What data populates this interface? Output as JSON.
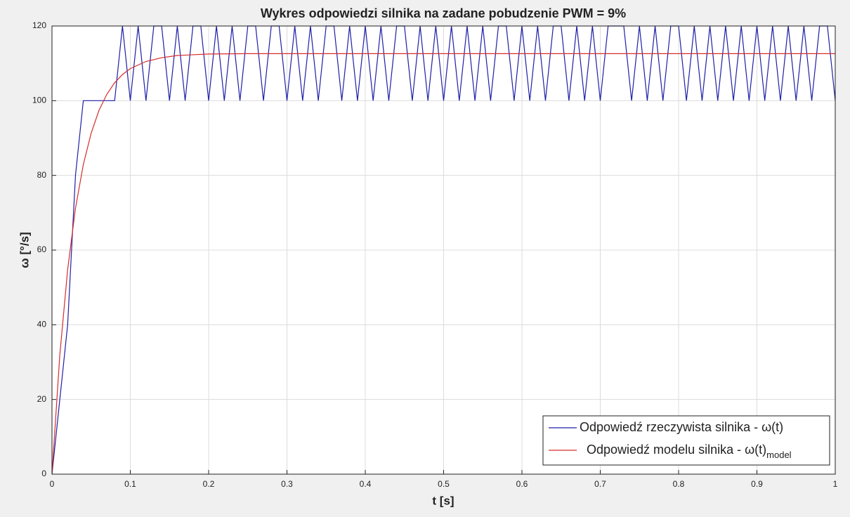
{
  "chart_data": {
    "type": "line",
    "title": "Wykres odpowiedzi silnika na zadane pobudzenie PWM = 9%",
    "xlabel": "t [s]",
    "ylabel": "ω [°/s]",
    "xlim": [
      0,
      1
    ],
    "xticks": [
      0,
      0.1,
      0.2,
      0.3,
      0.4,
      0.5,
      0.6,
      0.7,
      0.8,
      0.9,
      1
    ],
    "ylim": [
      0,
      120
    ],
    "yticks": [
      0,
      20,
      40,
      60,
      80,
      100,
      120
    ],
    "grid": true,
    "legend": "lower right",
    "series": [
      {
        "name": "Odpowiedź rzeczywista silnika - ω(t)",
        "color": "#1f1fa8",
        "x": [
          0,
          0.01,
          0.02,
          0.03,
          0.04,
          0.05,
          0.06,
          0.07,
          0.08,
          0.09,
          0.1,
          0.11,
          0.12,
          0.13,
          0.14,
          0.15,
          0.16,
          0.17,
          0.18,
          0.19,
          0.2,
          0.21,
          0.22,
          0.23,
          0.24,
          0.25,
          0.26,
          0.27,
          0.28,
          0.29,
          0.3,
          0.31,
          0.32,
          0.33,
          0.34,
          0.35,
          0.36,
          0.37,
          0.38,
          0.39,
          0.4,
          0.41,
          0.42,
          0.43,
          0.44,
          0.45,
          0.46,
          0.47,
          0.48,
          0.49,
          0.5,
          0.51,
          0.52,
          0.53,
          0.54,
          0.55,
          0.56,
          0.57,
          0.58,
          0.59,
          0.6,
          0.61,
          0.62,
          0.63,
          0.64,
          0.65,
          0.66,
          0.67,
          0.68,
          0.69,
          0.7,
          0.71,
          0.72,
          0.73,
          0.74,
          0.75,
          0.76,
          0.77,
          0.78,
          0.79,
          0.8,
          0.81,
          0.82,
          0.83,
          0.84,
          0.85,
          0.86,
          0.87,
          0.88,
          0.89,
          0.9,
          0.91,
          0.92,
          0.93,
          0.94,
          0.95,
          0.96,
          0.97,
          0.98,
          0.99,
          1
        ],
        "values": [
          0,
          20,
          40,
          80,
          100,
          100,
          100,
          100,
          100,
          120,
          100,
          120,
          100,
          120,
          120,
          100,
          120,
          100,
          120,
          120,
          100,
          120,
          100,
          120,
          100,
          120,
          120,
          100,
          120,
          120,
          100,
          120,
          100,
          120,
          100,
          120,
          120,
          100,
          120,
          100,
          120,
          100,
          120,
          100,
          120,
          120,
          100,
          120,
          100,
          120,
          100,
          120,
          100,
          120,
          100,
          120,
          100,
          120,
          120,
          100,
          120,
          100,
          120,
          100,
          120,
          120,
          100,
          120,
          100,
          120,
          100,
          120,
          120,
          120,
          100,
          120,
          100,
          120,
          100,
          120,
          120,
          100,
          120,
          100,
          120,
          100,
          120,
          100,
          120,
          100,
          120,
          100,
          120,
          100,
          120,
          100,
          120,
          100,
          120,
          120,
          100
        ]
      },
      {
        "name": "Odpowiedź modelu silnika - ω(t)",
        "subscript": "model",
        "color": "#d62c2c",
        "x": [
          0,
          0.01,
          0.02,
          0.03,
          0.04,
          0.05,
          0.06,
          0.07,
          0.08,
          0.09,
          0.1,
          0.12,
          0.14,
          0.16,
          0.18,
          0.2,
          0.25,
          1
        ],
        "values": [
          0,
          31.9,
          54.8,
          71.2,
          82.9,
          91.3,
          97.4,
          101.7,
          104.8,
          107.0,
          108.6,
          110.5,
          111.5,
          112.1,
          112.3,
          112.5,
          112.6,
          112.6
        ]
      }
    ]
  }
}
